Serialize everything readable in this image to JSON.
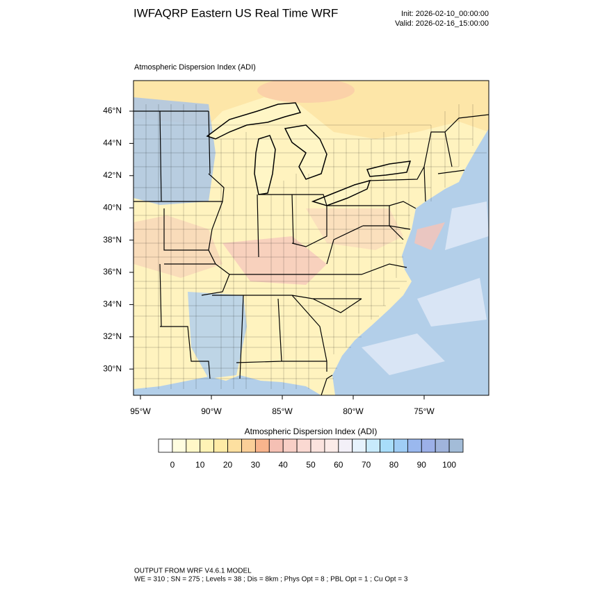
{
  "header": {
    "title": "IWFAQRP Eastern US Real Time WRF",
    "init": "Init: 2026-02-10_00:00:00",
    "valid": "Valid: 2026-02-16_15:00:00"
  },
  "plot_title": "Atmospheric Dispersion Index   (ADI)",
  "map": {
    "lat_labels": [
      "46°N",
      "44°N",
      "42°N",
      "40°N",
      "38°N",
      "36°N",
      "34°N",
      "32°N",
      "30°N"
    ],
    "lon_labels": [
      "95°W",
      "90°W",
      "85°W",
      "80°W",
      "75°W"
    ]
  },
  "colorbar": {
    "title": "Atmospheric Dispersion Index  (ADI)",
    "colors": [
      "#ffffff",
      "#fffde0",
      "#fff8c8",
      "#fff3b5",
      "#ffeba6",
      "#fde0a0",
      "#fbcf98",
      "#f8b48c",
      "#f5c0b4",
      "#f8cfc6",
      "#fad9d2",
      "#fbe3de",
      "#fcebe8",
      "#f3f0f8",
      "#e6f2fd",
      "#c8eafc",
      "#a8ddfa",
      "#9fcdf5",
      "#9ab8ee",
      "#9cb0e8",
      "#a0b4dc",
      "#a3bcd8"
    ],
    "labels": [
      "0",
      "10",
      "20",
      "30",
      "40",
      "50",
      "60",
      "70",
      "80",
      "90",
      "100"
    ]
  },
  "footer": {
    "lines": [
      "OUTPUT FROM WRF V4.6.1 MODEL",
      "WE = 310 ; SN = 275 ; Levels = 38 ; Dis = 8km ; Phys Opt = 8 ; PBL Opt = 1 ; Cu Opt = 3"
    ]
  }
}
